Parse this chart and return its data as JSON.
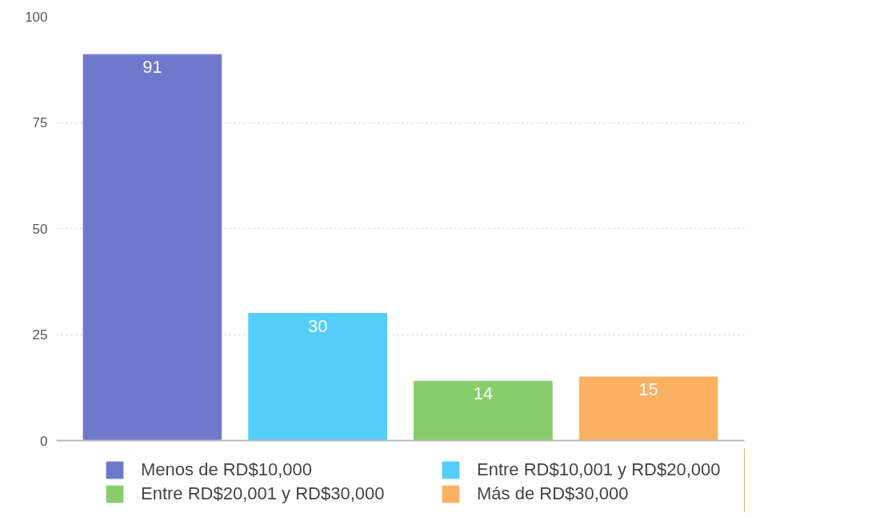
{
  "chart_data": {
    "type": "bar",
    "categories": [
      null,
      null,
      null,
      null
    ],
    "series": [
      {
        "name": "Menos de RD$10,000",
        "color": "#6e78cc",
        "values": [
          91,
          null,
          null,
          null
        ]
      },
      {
        "name": "Entre RD$10,001 y RD$20,000",
        "color": "#55cdfb",
        "values": [
          null,
          30,
          null,
          null
        ]
      },
      {
        "name": "Entre RD$20,001 y RD$30,000",
        "color": "#88cd6a",
        "values": [
          null,
          null,
          14,
          null
        ]
      },
      {
        "name": "Más de RD$30,000",
        "color": "#fbb062",
        "values": [
          null,
          null,
          null,
          15
        ]
      }
    ],
    "ylim": [
      0,
      100
    ],
    "yticks": [
      0,
      25,
      50,
      75,
      100
    ],
    "grid": "y",
    "legend": "bottom",
    "data_labels": true,
    "tick_labels": "y"
  }
}
